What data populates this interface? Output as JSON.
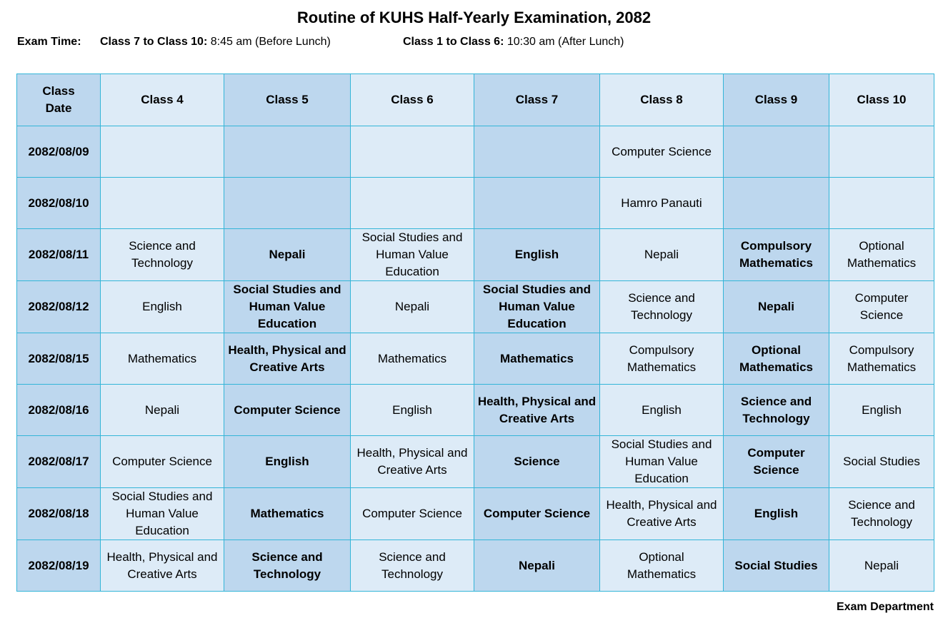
{
  "title": "Routine of KUHS Half-Yearly Examination, 2082",
  "exam_time": {
    "label": "Exam Time:",
    "group1_label": "Class 7 to Class 10:",
    "group1_time": "8:45 am (Before Lunch)",
    "group2_label": "Class 1 to Class 6:",
    "group2_time": "10:30 am (After Lunch)"
  },
  "table": {
    "corner": [
      "Class",
      "Date"
    ],
    "headers": [
      "Class 4",
      "Class 5",
      "Class 6",
      "Class 7",
      "Class 8",
      "Class 9",
      "Class 10"
    ],
    "rows": [
      {
        "date": "2082/08/09",
        "cells": [
          "",
          "",
          "",
          "",
          "Computer Science",
          "",
          ""
        ]
      },
      {
        "date": "2082/08/10",
        "cells": [
          "",
          "",
          "",
          "",
          "Hamro Panauti",
          "",
          ""
        ]
      },
      {
        "date": "2082/08/11",
        "cells": [
          "Science and Technology",
          "Nepali",
          "Social Studies and Human Value Education",
          "English",
          "Nepali",
          "Compulsory Mathematics",
          "Optional Mathematics"
        ]
      },
      {
        "date": "2082/08/12",
        "cells": [
          "English",
          "Social Studies and Human Value Education",
          "Nepali",
          "Social Studies and Human Value Education",
          "Science and Technology",
          "Nepali",
          "Computer Science"
        ]
      },
      {
        "date": "2082/08/15",
        "cells": [
          "Mathematics",
          "Health, Physical and Creative Arts",
          "Mathematics",
          "Mathematics",
          "Compulsory Mathematics",
          "Optional Mathematics",
          "Compulsory Mathematics"
        ]
      },
      {
        "date": "2082/08/16",
        "cells": [
          "Nepali",
          "Computer Science",
          "English",
          "Health, Physical and Creative Arts",
          "English",
          "Science and Technology",
          "English"
        ]
      },
      {
        "date": "2082/08/17",
        "cells": [
          "Computer Science",
          "English",
          "Health, Physical and Creative Arts",
          "Science",
          "Social Studies and Human Value Education",
          "Computer Science",
          "Social Studies"
        ]
      },
      {
        "date": "2082/08/18",
        "cells": [
          "Social Studies and Human Value Education",
          "Mathematics",
          "Computer Science",
          "Computer Science",
          "Health, Physical and Creative Arts",
          "English",
          "Science and Technology"
        ]
      },
      {
        "date": "2082/08/19",
        "cells": [
          "Health, Physical and Creative Arts",
          "Science and Technology",
          "Science and Technology",
          "Nepali",
          "Optional Mathematics",
          "Social Studies",
          "Nepali"
        ]
      }
    ]
  },
  "footer": "Exam Department"
}
